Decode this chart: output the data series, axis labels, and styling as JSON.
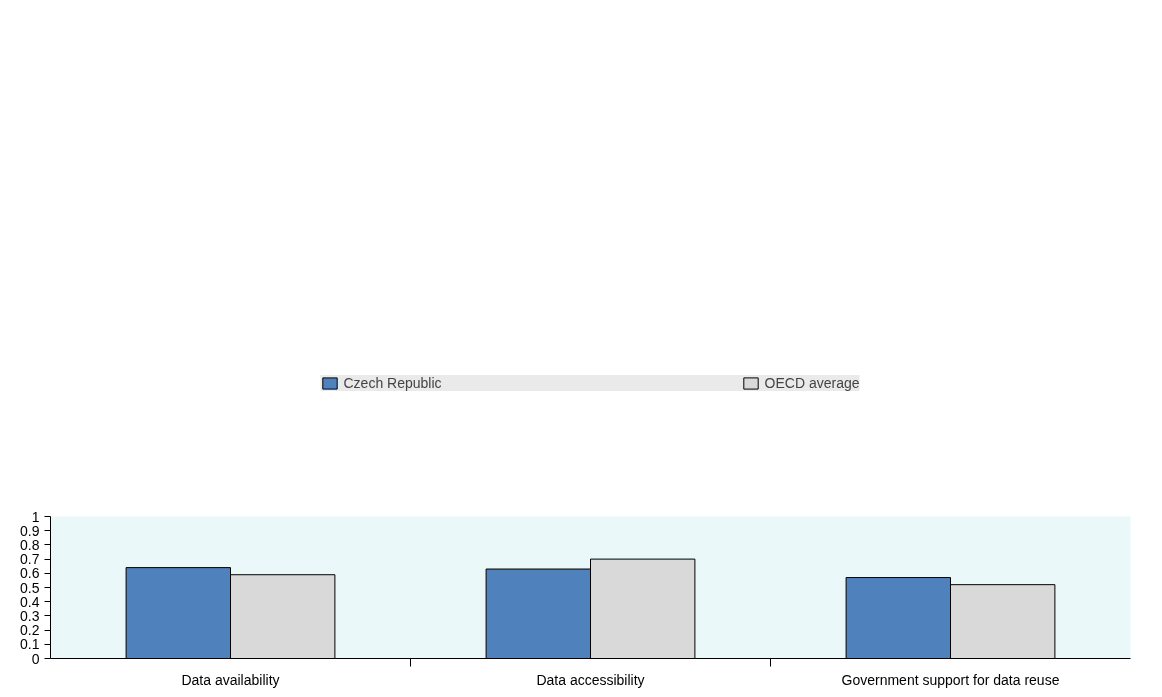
{
  "chart_data": {
    "type": "bar",
    "categories": [
      "Data availability",
      "Data accessibility",
      "Government support for data reuse"
    ],
    "series": [
      {
        "name": "Czech Republic",
        "color": "#4f81bd",
        "values": [
          0.64,
          0.63,
          0.57
        ]
      },
      {
        "name": "OECD average",
        "color": "#d9d9d9",
        "values": [
          0.59,
          0.7,
          0.52
        ]
      }
    ],
    "ylim": [
      0,
      1
    ],
    "yticks": [
      0,
      0.1,
      0.2,
      0.3,
      0.4,
      0.5,
      0.6,
      0.7,
      0.8,
      0.9,
      1
    ],
    "grid": false,
    "legend": "top"
  }
}
